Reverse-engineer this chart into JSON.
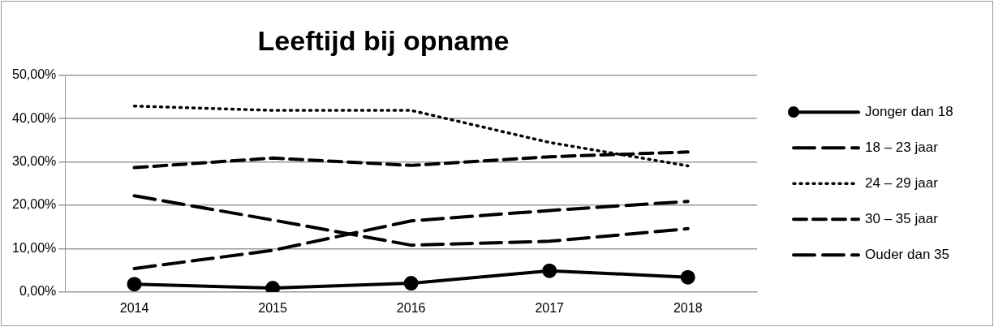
{
  "chart_data": {
    "type": "line",
    "title": "Leeftijd bij opname",
    "categories": [
      "2014",
      "2015",
      "2016",
      "2017",
      "2018"
    ],
    "series": [
      {
        "name": "Jonger dan 18",
        "color": "#000000",
        "values": [
          1.8,
          0.9,
          2.0,
          4.9,
          3.4
        ],
        "marker": "circle",
        "line_style": "solid"
      },
      {
        "name": "18 – 23 jaar",
        "color": "#000000",
        "values": [
          22.2,
          16.6,
          10.8,
          11.7,
          14.6
        ],
        "marker": "none",
        "line_style": "dashed"
      },
      {
        "name": "24 – 29 jaar",
        "color": "#000000",
        "values": [
          42.9,
          41.9,
          41.9,
          34.5,
          29.1
        ],
        "marker": "none",
        "line_style": "dotted"
      },
      {
        "name": "30 – 35 jaar",
        "color": "#000000",
        "values": [
          28.7,
          30.9,
          29.2,
          31.2,
          32.3
        ],
        "marker": "none",
        "line_style": "dashed"
      },
      {
        "name": "Ouder dan 35",
        "color": "#000000",
        "values": [
          5.4,
          9.6,
          16.4,
          18.8,
          20.9
        ],
        "marker": "none",
        "line_style": "dashed"
      }
    ],
    "ylim": [
      0,
      50
    ],
    "yticks": [
      {
        "value": 0,
        "label": "0,00%"
      },
      {
        "value": 10,
        "label": "10,00%"
      },
      {
        "value": 20,
        "label": "20,00%"
      },
      {
        "value": 30,
        "label": "30,00%"
      },
      {
        "value": 40,
        "label": "40,00%"
      },
      {
        "value": 50,
        "label": "50,00%"
      }
    ],
    "grid": "y",
    "legend": "right"
  }
}
